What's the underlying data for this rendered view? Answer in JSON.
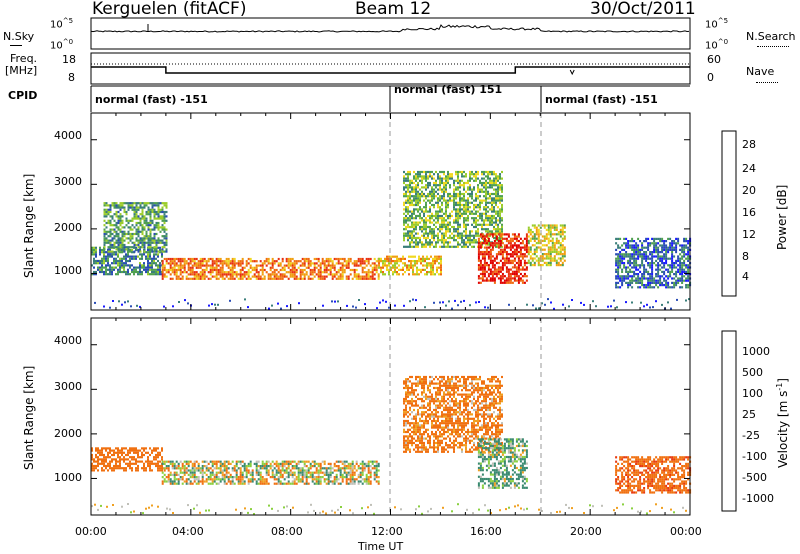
{
  "header": {
    "station": "Kerguelen (fitACF)",
    "beam": "Beam 12",
    "date": "30/Oct/2011"
  },
  "panels": {
    "nsky_label": "N.Sky",
    "nsearch_label": "N.Search",
    "freq_label_1": "Freq.",
    "freq_label_2": "[MHz]",
    "nave_label": "Nave",
    "cpid_label": "CPID",
    "sky_ticks": [
      "10^5",
      "10^0"
    ],
    "search_ticks": [
      "10^5",
      "10^0"
    ],
    "freq_ticks": [
      "18",
      "8"
    ],
    "nave_ticks": [
      "60",
      "0"
    ],
    "cpid_segments": [
      "normal (fast) -151",
      "normal (fast) 151",
      "normal (fast) -151"
    ]
  },
  "axes": {
    "ylabel": "Slant Range [km]",
    "yticks": [
      "4000",
      "3000",
      "2000",
      "1000"
    ],
    "xticks": [
      "00:00",
      "04:00",
      "08:00",
      "12:00",
      "16:00",
      "20:00",
      "00:00"
    ],
    "xlabel": "Time UT"
  },
  "colorbars": {
    "power": {
      "label": "Power [dB]",
      "ticks": [
        "28",
        "24",
        "20",
        "16",
        "12",
        "8",
        "4"
      ],
      "colors": [
        "#1a1aff",
        "#2a4cb5",
        "#3a7e7a",
        "#4fa050",
        "#9bcc2a",
        "#f0d820",
        "#f0a010",
        "#f06a10",
        "#e83010",
        "#e00000"
      ]
    },
    "velocity": {
      "label": "Velocity [m s^-1]",
      "ticks": [
        "1000",
        "500",
        "100",
        "25",
        "-25",
        "-100",
        "-500",
        "-1000"
      ],
      "colors": [
        "#1a3aa0",
        "#2a5ab0",
        "#3a8a70",
        "#8ad040",
        "#c0c0b8",
        "#f0a020",
        "#f07010",
        "#e83a10",
        "#e00000"
      ]
    }
  },
  "chart_data": [
    {
      "type": "heatmap",
      "title": "Power",
      "xlabel": "Time UT",
      "ylabel": "Slant Range [km]",
      "x_range_hours": [
        0,
        24
      ],
      "ylim": [
        180,
        4600
      ],
      "colorbar_range_dB": [
        0,
        30
      ],
      "regions_summary": [
        {
          "time": "00:00-02:50",
          "range_km": [
            1000,
            1600
          ],
          "power_dB": 8
        },
        {
          "time": "00:30-03:00",
          "range_km": [
            1500,
            2600
          ],
          "power_dB": 10
        },
        {
          "time": "02:50-11:30",
          "range_km": [
            900,
            1350
          ],
          "power_dB": 22
        },
        {
          "time": "11:30-14:00",
          "range_km": [
            1000,
            1400
          ],
          "power_dB": 18
        },
        {
          "time": "12:30-16:30",
          "range_km": [
            1600,
            3300
          ],
          "power_dB": 12
        },
        {
          "time": "15:30-17:30",
          "range_km": [
            800,
            1900
          ],
          "power_dB": 26
        },
        {
          "time": "17:30-19:00",
          "range_km": [
            1200,
            2100
          ],
          "power_dB": 16
        },
        {
          "time": "21:00-24:00",
          "range_km": [
            700,
            1800
          ],
          "power_dB": 6
        }
      ]
    },
    {
      "type": "heatmap",
      "title": "Velocity",
      "xlabel": "Time UT",
      "ylabel": "Slant Range [km]",
      "x_range_hours": [
        0,
        24
      ],
      "ylim": [
        180,
        4600
      ],
      "colorbar_range_ms": [
        -1000,
        1000
      ],
      "regions_summary": [
        {
          "time": "00:00-02:50",
          "range_km": [
            1200,
            1700
          ],
          "velocity_ms": -300
        },
        {
          "time": "02:50-11:30",
          "range_km": [
            900,
            1400
          ],
          "velocity_ms": 0
        },
        {
          "time": "12:30-16:30",
          "range_km": [
            1600,
            3300
          ],
          "velocity_ms": -200
        },
        {
          "time": "15:30-17:30",
          "range_km": [
            800,
            1900
          ],
          "velocity_ms": 150
        },
        {
          "time": "21:00-24:00",
          "range_km": [
            700,
            1500
          ],
          "velocity_ms": -400
        }
      ]
    }
  ]
}
